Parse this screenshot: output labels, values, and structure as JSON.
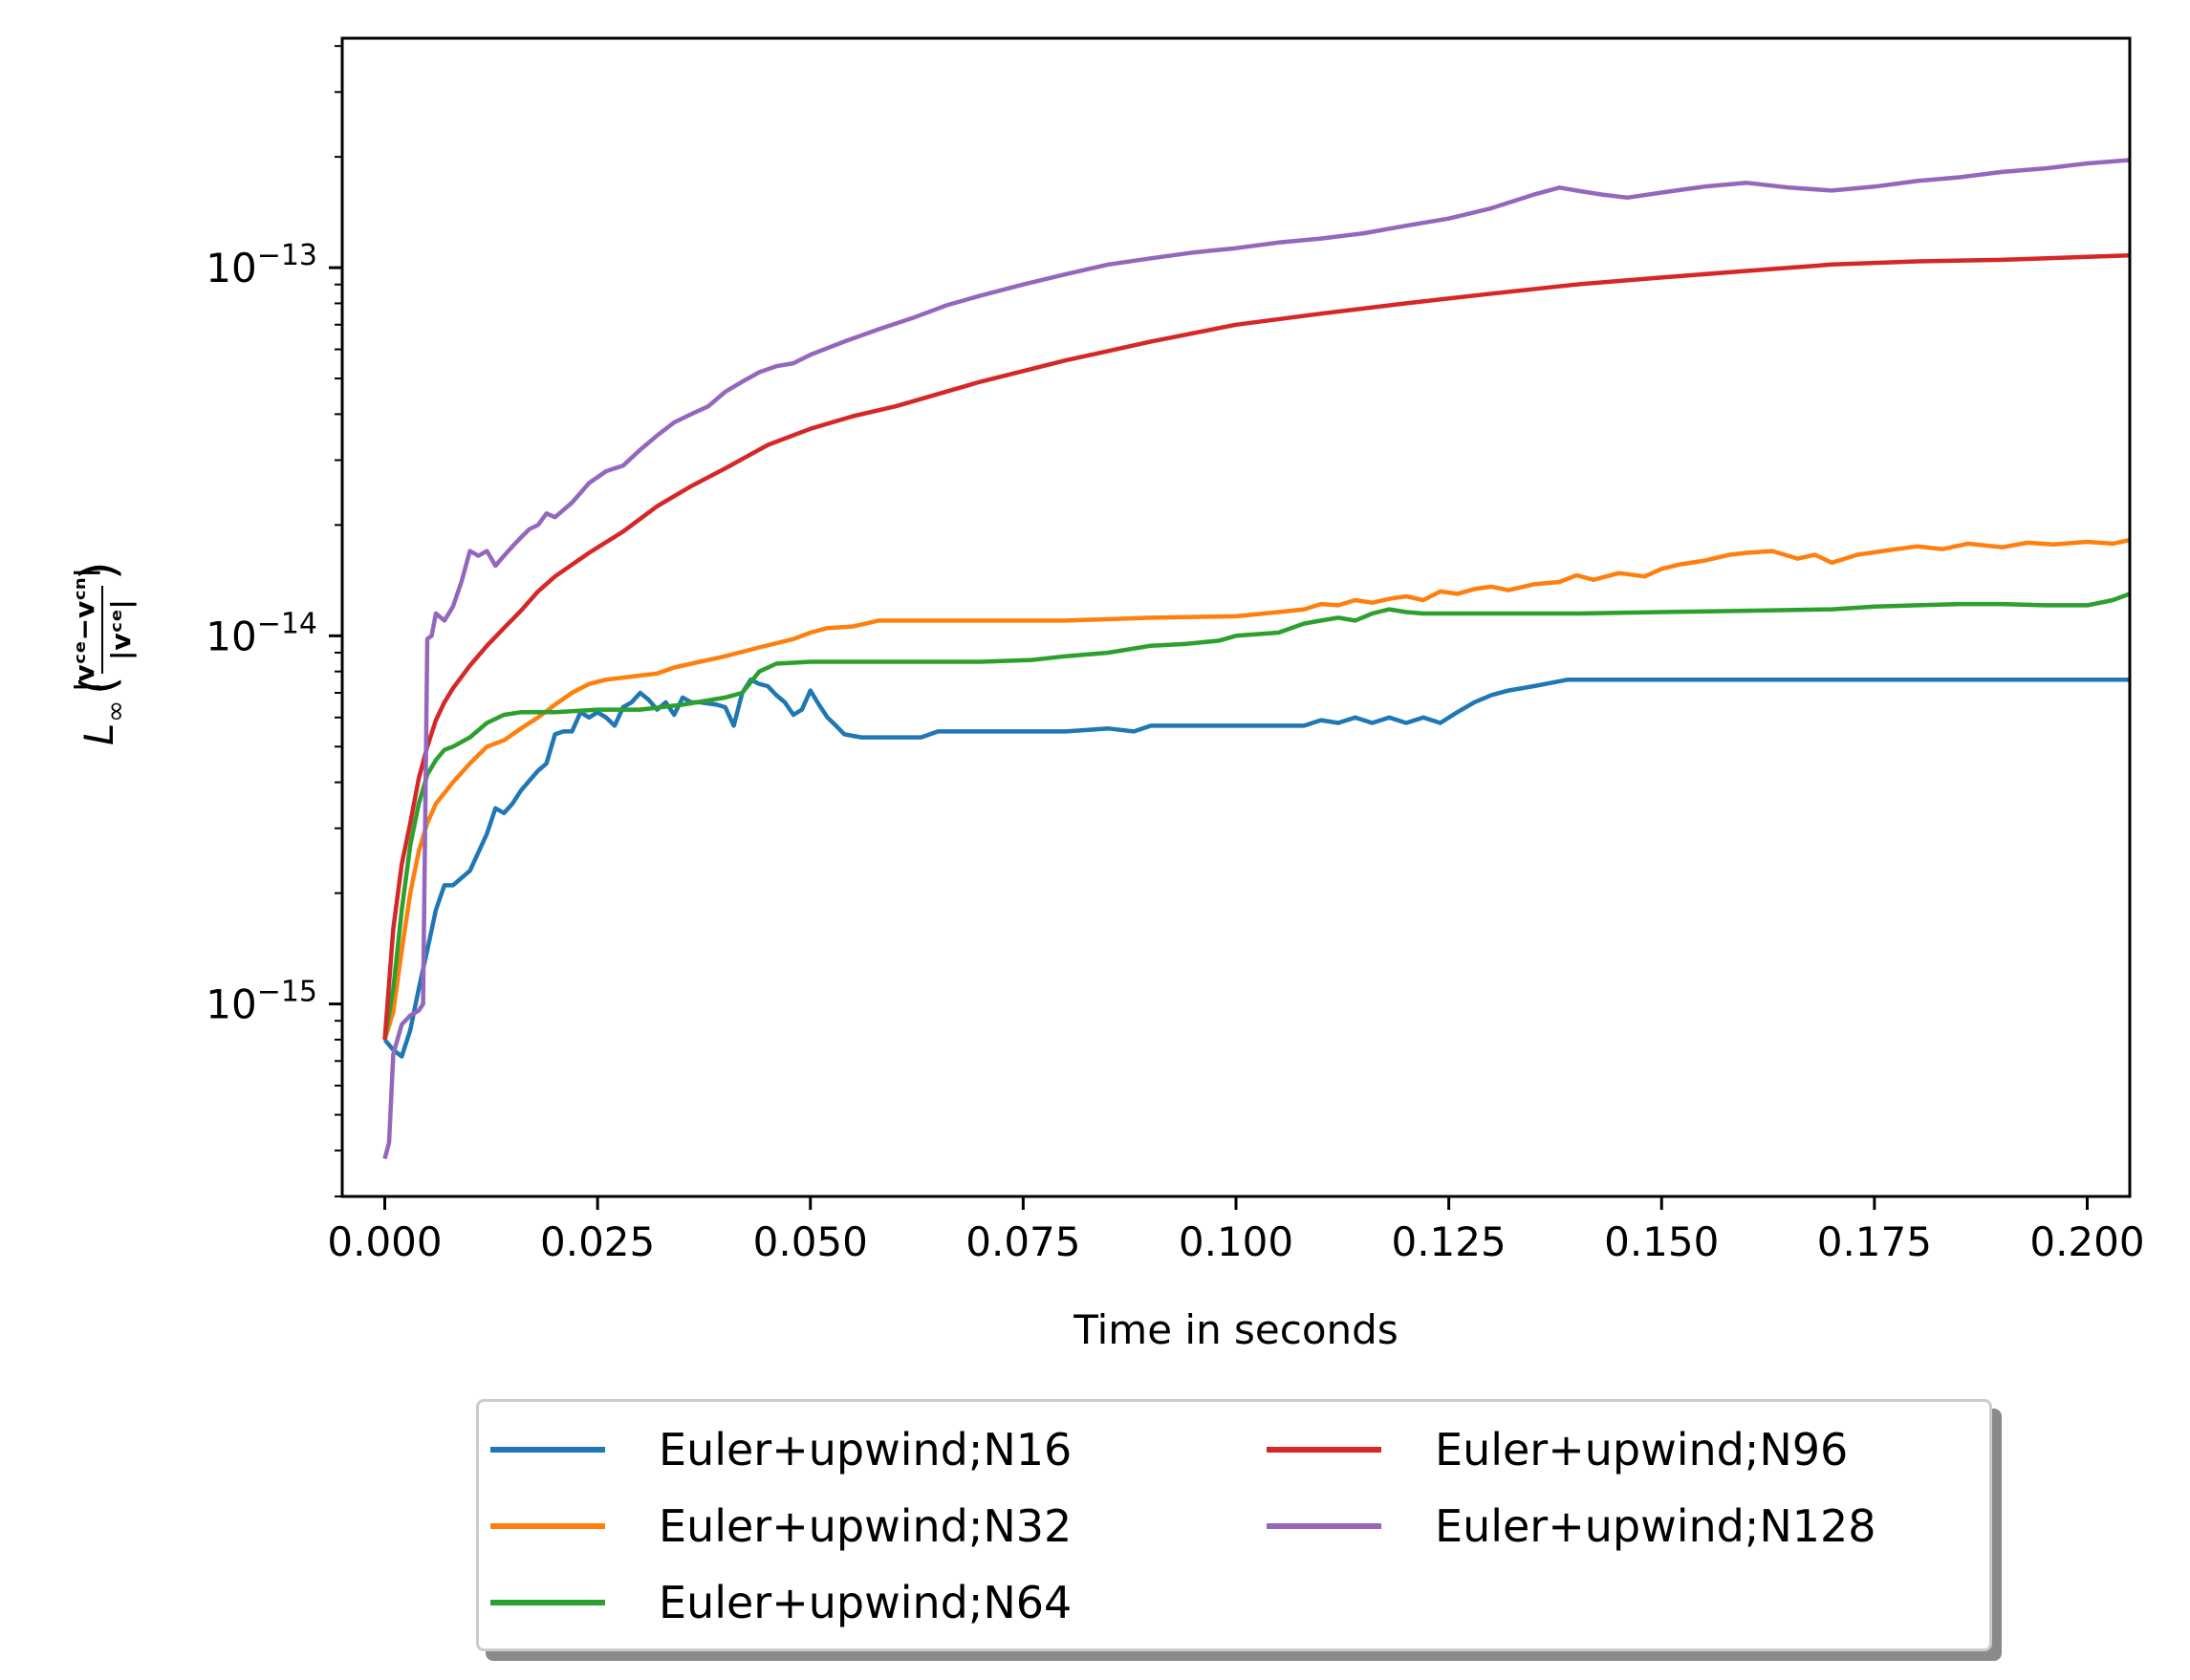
{
  "chart_data": {
    "type": "line",
    "xlabel": "Time in seconds",
    "ylabel": "L∞(|vᶜᵉ − vᶜⁿ| / |vᶜᵉ|)",
    "ylabel_parts": {
      "L": "L",
      "sub": "∞",
      "num": "|vᶜᵉ−vᶜⁿ|",
      "den": "|vᶜᵉ|"
    },
    "yscale": "log",
    "xlim": [
      -0.005,
      0.205
    ],
    "ylim": [
      3e-16,
      4.2e-13
    ],
    "x_ticks": [
      "0.000",
      "0.025",
      "0.050",
      "0.075",
      "0.100",
      "0.125",
      "0.150",
      "0.175",
      "0.200"
    ],
    "y_major_ticks": [
      {
        "value": 1e-15,
        "base": "10",
        "exp": "−15"
      },
      {
        "value": 1e-14,
        "base": "10",
        "exp": "−14"
      },
      {
        "value": 1e-13,
        "base": "10",
        "exp": "−13"
      }
    ],
    "grid": false,
    "legend_position": "below",
    "series": [
      {
        "name": "Euler+upwind;N16",
        "color": "#1f77b4",
        "x": [
          0,
          0.001,
          0.002,
          0.003,
          0.004,
          0.005,
          0.006,
          0.007,
          0.008,
          0.01,
          0.012,
          0.013,
          0.014,
          0.015,
          0.016,
          0.018,
          0.019,
          0.02,
          0.021,
          0.022,
          0.023,
          0.024,
          0.025,
          0.026,
          0.027,
          0.028,
          0.029,
          0.03,
          0.031,
          0.032,
          0.033,
          0.034,
          0.035,
          0.036,
          0.037,
          0.039,
          0.04,
          0.041,
          0.042,
          0.043,
          0.044,
          0.045,
          0.046,
          0.047,
          0.048,
          0.049,
          0.05,
          0.051,
          0.052,
          0.053,
          0.054,
          0.056,
          0.058,
          0.06,
          0.063,
          0.065,
          0.07,
          0.08,
          0.085,
          0.088,
          0.09,
          0.095,
          0.1,
          0.108,
          0.11,
          0.112,
          0.114,
          0.116,
          0.118,
          0.12,
          0.122,
          0.124,
          0.126,
          0.128,
          0.13,
          0.132,
          0.135,
          0.139,
          0.145,
          0.15,
          0.16,
          0.17,
          0.18,
          0.19,
          0.2,
          0.205
        ],
        "y": [
          8e-16,
          7.5e-16,
          7.2e-16,
          8.5e-16,
          1.1e-15,
          1.4e-15,
          1.8e-15,
          2.1e-15,
          2.1e-15,
          2.3e-15,
          2.9e-15,
          3.4e-15,
          3.3e-15,
          3.5e-15,
          3.8e-15,
          4.3e-15,
          4.5e-15,
          5.4e-15,
          5.5e-15,
          5.5e-15,
          6.2e-15,
          6e-15,
          6.2e-15,
          6e-15,
          5.7e-15,
          6.4e-15,
          6.6e-15,
          7e-15,
          6.7e-15,
          6.3e-15,
          6.6e-15,
          6.1e-15,
          6.8e-15,
          6.6e-15,
          6.6e-15,
          6.5e-15,
          6.4e-15,
          5.7e-15,
          7e-15,
          7.6e-15,
          7.4e-15,
          7.3e-15,
          6.9e-15,
          6.6e-15,
          6.1e-15,
          6.3e-15,
          7.1e-15,
          6.5e-15,
          6e-15,
          5.7e-15,
          5.4e-15,
          5.3e-15,
          5.3e-15,
          5.3e-15,
          5.3e-15,
          5.5e-15,
          5.5e-15,
          5.5e-15,
          5.6e-15,
          5.5e-15,
          5.7e-15,
          5.7e-15,
          5.7e-15,
          5.7e-15,
          5.9e-15,
          5.8e-15,
          6e-15,
          5.8e-15,
          6e-15,
          5.8e-15,
          6e-15,
          5.8e-15,
          6.2e-15,
          6.6e-15,
          6.9e-15,
          7.1e-15,
          7.3e-15,
          7.6e-15,
          7.6e-15,
          7.6e-15,
          7.6e-15,
          7.6e-15,
          7.6e-15,
          7.6e-15,
          7.6e-15,
          7.6e-15
        ]
      },
      {
        "name": "Euler+upwind;N32",
        "color": "#ff7f0e",
        "x": [
          0,
          0.001,
          0.002,
          0.003,
          0.004,
          0.005,
          0.006,
          0.008,
          0.01,
          0.012,
          0.014,
          0.016,
          0.018,
          0.02,
          0.022,
          0.024,
          0.026,
          0.028,
          0.03,
          0.032,
          0.034,
          0.036,
          0.04,
          0.044,
          0.048,
          0.05,
          0.052,
          0.055,
          0.058,
          0.06,
          0.07,
          0.08,
          0.09,
          0.1,
          0.105,
          0.108,
          0.11,
          0.112,
          0.114,
          0.116,
          0.118,
          0.12,
          0.122,
          0.124,
          0.126,
          0.128,
          0.13,
          0.132,
          0.135,
          0.138,
          0.14,
          0.142,
          0.145,
          0.148,
          0.15,
          0.152,
          0.155,
          0.158,
          0.16,
          0.163,
          0.166,
          0.168,
          0.17,
          0.173,
          0.176,
          0.18,
          0.183,
          0.186,
          0.19,
          0.193,
          0.196,
          0.2,
          0.203,
          0.205
        ],
        "y": [
          8e-16,
          9.5e-16,
          1.4e-15,
          2e-15,
          2.6e-15,
          3.1e-15,
          3.5e-15,
          4e-15,
          4.5e-15,
          5e-15,
          5.2e-15,
          5.6e-15,
          6e-15,
          6.5e-15,
          7e-15,
          7.4e-15,
          7.6e-15,
          7.7e-15,
          7.8e-15,
          7.9e-15,
          8.2e-15,
          8.4e-15,
          8.8e-15,
          9.3e-15,
          9.8e-15,
          1.02e-14,
          1.05e-14,
          1.06e-14,
          1.1e-14,
          1.1e-14,
          1.1e-14,
          1.1e-14,
          1.12e-14,
          1.13e-14,
          1.16e-14,
          1.18e-14,
          1.22e-14,
          1.21e-14,
          1.25e-14,
          1.23e-14,
          1.26e-14,
          1.28e-14,
          1.25e-14,
          1.32e-14,
          1.3e-14,
          1.34e-14,
          1.36e-14,
          1.33e-14,
          1.38e-14,
          1.4e-14,
          1.46e-14,
          1.42e-14,
          1.48e-14,
          1.45e-14,
          1.52e-14,
          1.56e-14,
          1.6e-14,
          1.66e-14,
          1.68e-14,
          1.7e-14,
          1.62e-14,
          1.66e-14,
          1.58e-14,
          1.66e-14,
          1.7e-14,
          1.75e-14,
          1.72e-14,
          1.78e-14,
          1.74e-14,
          1.79e-14,
          1.77e-14,
          1.8e-14,
          1.78e-14,
          1.82e-14
        ]
      },
      {
        "name": "Euler+upwind;N64",
        "color": "#2ca02c",
        "x": [
          0,
          0.001,
          0.002,
          0.003,
          0.004,
          0.005,
          0.006,
          0.007,
          0.008,
          0.01,
          0.012,
          0.014,
          0.016,
          0.02,
          0.025,
          0.03,
          0.035,
          0.04,
          0.042,
          0.044,
          0.046,
          0.05,
          0.06,
          0.07,
          0.076,
          0.08,
          0.085,
          0.09,
          0.094,
          0.098,
          0.1,
          0.105,
          0.108,
          0.11,
          0.112,
          0.114,
          0.116,
          0.118,
          0.12,
          0.122,
          0.13,
          0.14,
          0.15,
          0.16,
          0.17,
          0.175,
          0.18,
          0.185,
          0.19,
          0.195,
          0.2,
          0.203,
          0.205
        ],
        "y": [
          8e-16,
          1.1e-15,
          1.8e-15,
          2.7e-15,
          3.5e-15,
          4.2e-15,
          4.6e-15,
          4.9e-15,
          5e-15,
          5.3e-15,
          5.8e-15,
          6.1e-15,
          6.2e-15,
          6.2e-15,
          6.3e-15,
          6.3e-15,
          6.5e-15,
          6.8e-15,
          7e-15,
          8e-15,
          8.4e-15,
          8.5e-15,
          8.5e-15,
          8.5e-15,
          8.6e-15,
          8.8e-15,
          9e-15,
          9.4e-15,
          9.5e-15,
          9.7e-15,
          1e-14,
          1.02e-14,
          1.08e-14,
          1.1e-14,
          1.12e-14,
          1.1e-14,
          1.15e-14,
          1.18e-14,
          1.16e-14,
          1.15e-14,
          1.15e-14,
          1.15e-14,
          1.16e-14,
          1.17e-14,
          1.18e-14,
          1.2e-14,
          1.21e-14,
          1.22e-14,
          1.22e-14,
          1.21e-14,
          1.21e-14,
          1.25e-14,
          1.3e-14
        ]
      },
      {
        "name": "Euler+upwind;N96",
        "color": "#d62728",
        "x": [
          0,
          0.001,
          0.002,
          0.003,
          0.004,
          0.005,
          0.006,
          0.007,
          0.008,
          0.01,
          0.012,
          0.014,
          0.016,
          0.018,
          0.02,
          0.024,
          0.028,
          0.032,
          0.036,
          0.04,
          0.045,
          0.05,
          0.055,
          0.06,
          0.07,
          0.08,
          0.09,
          0.1,
          0.11,
          0.12,
          0.13,
          0.14,
          0.15,
          0.16,
          0.17,
          0.18,
          0.19,
          0.2,
          0.205
        ],
        "y": [
          8e-16,
          1.6e-15,
          2.4e-15,
          3.1e-15,
          4.1e-15,
          5e-15,
          5.9e-15,
          6.6e-15,
          7.2e-15,
          8.3e-15,
          9.4e-15,
          1.05e-14,
          1.17e-14,
          1.32e-14,
          1.45e-14,
          1.68e-14,
          1.92e-14,
          2.25e-14,
          2.55e-14,
          2.85e-14,
          3.3e-14,
          3.65e-14,
          3.95e-14,
          4.2e-14,
          4.9e-14,
          5.6e-14,
          6.3e-14,
          7e-14,
          7.5e-14,
          8e-14,
          8.5e-14,
          9e-14,
          9.4e-14,
          9.8e-14,
          1.02e-13,
          1.04e-13,
          1.05e-13,
          1.07e-13,
          1.08e-13
        ]
      },
      {
        "name": "Euler+upwind;N128",
        "color": "#9467bd",
        "x": [
          0,
          0.0005,
          0.001,
          0.002,
          0.003,
          0.004,
          0.0045,
          0.005,
          0.0055,
          0.006,
          0.007,
          0.008,
          0.009,
          0.01,
          0.011,
          0.012,
          0.013,
          0.014,
          0.015,
          0.016,
          0.017,
          0.018,
          0.019,
          0.02,
          0.022,
          0.024,
          0.026,
          0.028,
          0.03,
          0.032,
          0.034,
          0.036,
          0.038,
          0.04,
          0.042,
          0.044,
          0.046,
          0.048,
          0.05,
          0.054,
          0.058,
          0.062,
          0.066,
          0.07,
          0.075,
          0.08,
          0.085,
          0.09,
          0.095,
          0.1,
          0.105,
          0.11,
          0.115,
          0.12,
          0.125,
          0.13,
          0.135,
          0.138,
          0.14,
          0.143,
          0.146,
          0.15,
          0.155,
          0.16,
          0.165,
          0.17,
          0.175,
          0.18,
          0.185,
          0.19,
          0.195,
          0.2,
          0.205
        ],
        "y": [
          3.8e-16,
          4.2e-16,
          7.3e-16,
          8.8e-16,
          9.3e-16,
          9.6e-16,
          1e-15,
          9.8e-15,
          1e-14,
          1.15e-14,
          1.1e-14,
          1.2e-14,
          1.4e-14,
          1.7e-14,
          1.65e-14,
          1.7e-14,
          1.55e-14,
          1.65e-14,
          1.75e-14,
          1.85e-14,
          1.95e-14,
          2e-14,
          2.15e-14,
          2.1e-14,
          2.3e-14,
          2.6e-14,
          2.8e-14,
          2.9e-14,
          3.2e-14,
          3.5e-14,
          3.8e-14,
          4e-14,
          4.2e-14,
          4.6e-14,
          4.9e-14,
          5.2e-14,
          5.4e-14,
          5.5e-14,
          5.8e-14,
          6.3e-14,
          6.8e-14,
          7.3e-14,
          7.9e-14,
          8.4e-14,
          9e-14,
          9.6e-14,
          1.02e-13,
          1.06e-13,
          1.1e-13,
          1.13e-13,
          1.17e-13,
          1.2e-13,
          1.24e-13,
          1.3e-13,
          1.36e-13,
          1.45e-13,
          1.58e-13,
          1.65e-13,
          1.62e-13,
          1.58e-13,
          1.55e-13,
          1.6e-13,
          1.66e-13,
          1.7e-13,
          1.65e-13,
          1.62e-13,
          1.66e-13,
          1.72e-13,
          1.76e-13,
          1.82e-13,
          1.86e-13,
          1.92e-13,
          1.96e-13
        ]
      }
    ]
  }
}
